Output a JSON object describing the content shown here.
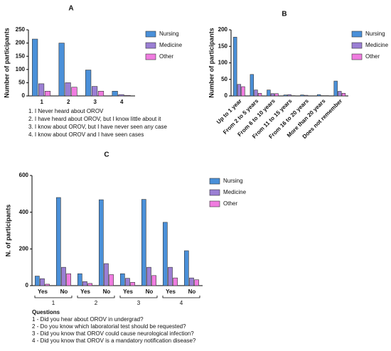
{
  "chart_data": [
    {
      "type": "bar",
      "title": "A",
      "y_label": "Number of participants",
      "categories": [
        "1",
        "2",
        "3",
        "4"
      ],
      "series": [
        {
          "name": "Nursing",
          "color": "#4a90d9",
          "values": [
            215,
            200,
            98,
            18
          ]
        },
        {
          "name": "Medicine",
          "color": "#9b7fd4",
          "values": [
            46,
            50,
            36,
            5
          ]
        },
        {
          "name": "Other",
          "color": "#f07ce0",
          "values": [
            18,
            33,
            18,
            2
          ]
        }
      ],
      "ylim": [
        0,
        250
      ],
      "yticks": [
        0,
        50,
        100,
        150,
        200,
        250
      ],
      "notes": [
        "1. I Never heard about OROV",
        "2. I have heard about OROV, but I know little about it",
        "3. I know about OROV, but I have never seen any case",
        "4. I know about OROV and I have seen cases"
      ]
    },
    {
      "type": "bar",
      "title": "B",
      "y_label": "Number of participants",
      "categories": [
        "Up to 1 year",
        "From 2 to 5 years",
        "From 6 to 10 years",
        "From 11 to 15 years",
        "From 16 to 20 years",
        "More than 20 years",
        "Does not remember"
      ],
      "series": [
        {
          "name": "Nursing",
          "color": "#4a90d9",
          "values": [
            178,
            65,
            18,
            3,
            3,
            4,
            45
          ]
        },
        {
          "name": "Medicine",
          "color": "#9b7fd4",
          "values": [
            35,
            18,
            7,
            4,
            2,
            1,
            14
          ]
        },
        {
          "name": "Other",
          "color": "#f07ce0",
          "values": [
            28,
            8,
            7,
            1,
            0,
            1,
            8
          ]
        }
      ],
      "ylim": [
        0,
        200
      ],
      "yticks": [
        0,
        50,
        100,
        150,
        200
      ]
    },
    {
      "type": "bar",
      "title": "C",
      "y_label": "N. of participants",
      "categories": [
        "Yes",
        "No",
        "Yes",
        "No",
        "Yes",
        "No",
        "Yes",
        "No"
      ],
      "groups": [
        "1",
        "2",
        "3",
        "4"
      ],
      "series": [
        {
          "name": "Nursing",
          "color": "#4a90d9",
          "values": [
            52,
            480,
            65,
            468,
            65,
            470,
            345,
            190
          ]
        },
        {
          "name": "Medicine",
          "color": "#9b7fd4",
          "values": [
            38,
            100,
            22,
            120,
            40,
            100,
            100,
            42
          ]
        },
        {
          "name": "Other",
          "color": "#f07ce0",
          "values": [
            8,
            65,
            12,
            60,
            18,
            55,
            42,
            32
          ]
        }
      ],
      "ylim": [
        0,
        600
      ],
      "yticks": [
        0,
        200,
        400,
        600
      ],
      "notes_title": "Questions",
      "notes": [
        "1 - Did you hear about OROV in undergrad?",
        "2 - Do you know which laboratorial test should be requested?",
        "3 - Did you know that OROV could cause neurological infection?",
        "4 - Did you know that OROV is a mandatory notification disease?"
      ]
    }
  ]
}
